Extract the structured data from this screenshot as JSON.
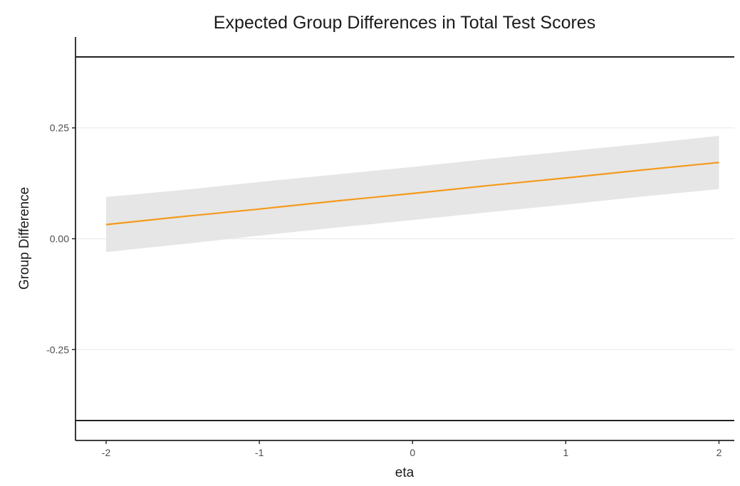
{
  "chart_data": {
    "type": "line",
    "title": "Expected Group Differences in Total Test Scores",
    "xlabel": "eta",
    "ylabel": "Group Difference",
    "xlim": [
      -2.2,
      2.1
    ],
    "ylim": [
      -0.455,
      0.455
    ],
    "x_ticks": [
      -2,
      -1,
      0,
      1,
      2
    ],
    "x_tick_labels": [
      "-2",
      "-1",
      "0",
      "1",
      "2"
    ],
    "y_ticks": [
      -0.25,
      0,
      0.25
    ],
    "y_tick_labels": [
      "-0.25",
      "0.00",
      "0.25"
    ],
    "grid": "horizontal-major",
    "legend": "none",
    "reference_lines": [
      0.41,
      -0.41
    ],
    "series": [
      {
        "x": [
          -2,
          -1.5,
          -1,
          -0.5,
          0,
          0.5,
          1,
          1.5,
          2
        ],
        "values": [
          0.032,
          0.05,
          0.067,
          0.085,
          0.102,
          0.12,
          0.137,
          0.155,
          0.172
        ],
        "band_lower": [
          -0.03,
          -0.012,
          0.007,
          0.025,
          0.042,
          0.06,
          0.077,
          0.095,
          0.112
        ],
        "band_upper": [
          0.094,
          0.11,
          0.128,
          0.145,
          0.162,
          0.18,
          0.197,
          0.214,
          0.232
        ]
      }
    ],
    "colors": {
      "line": "#f59a1c",
      "band": "#e6e6e6",
      "grid": "#ebebeb",
      "axis": "#222222",
      "reference": "#222222"
    }
  }
}
